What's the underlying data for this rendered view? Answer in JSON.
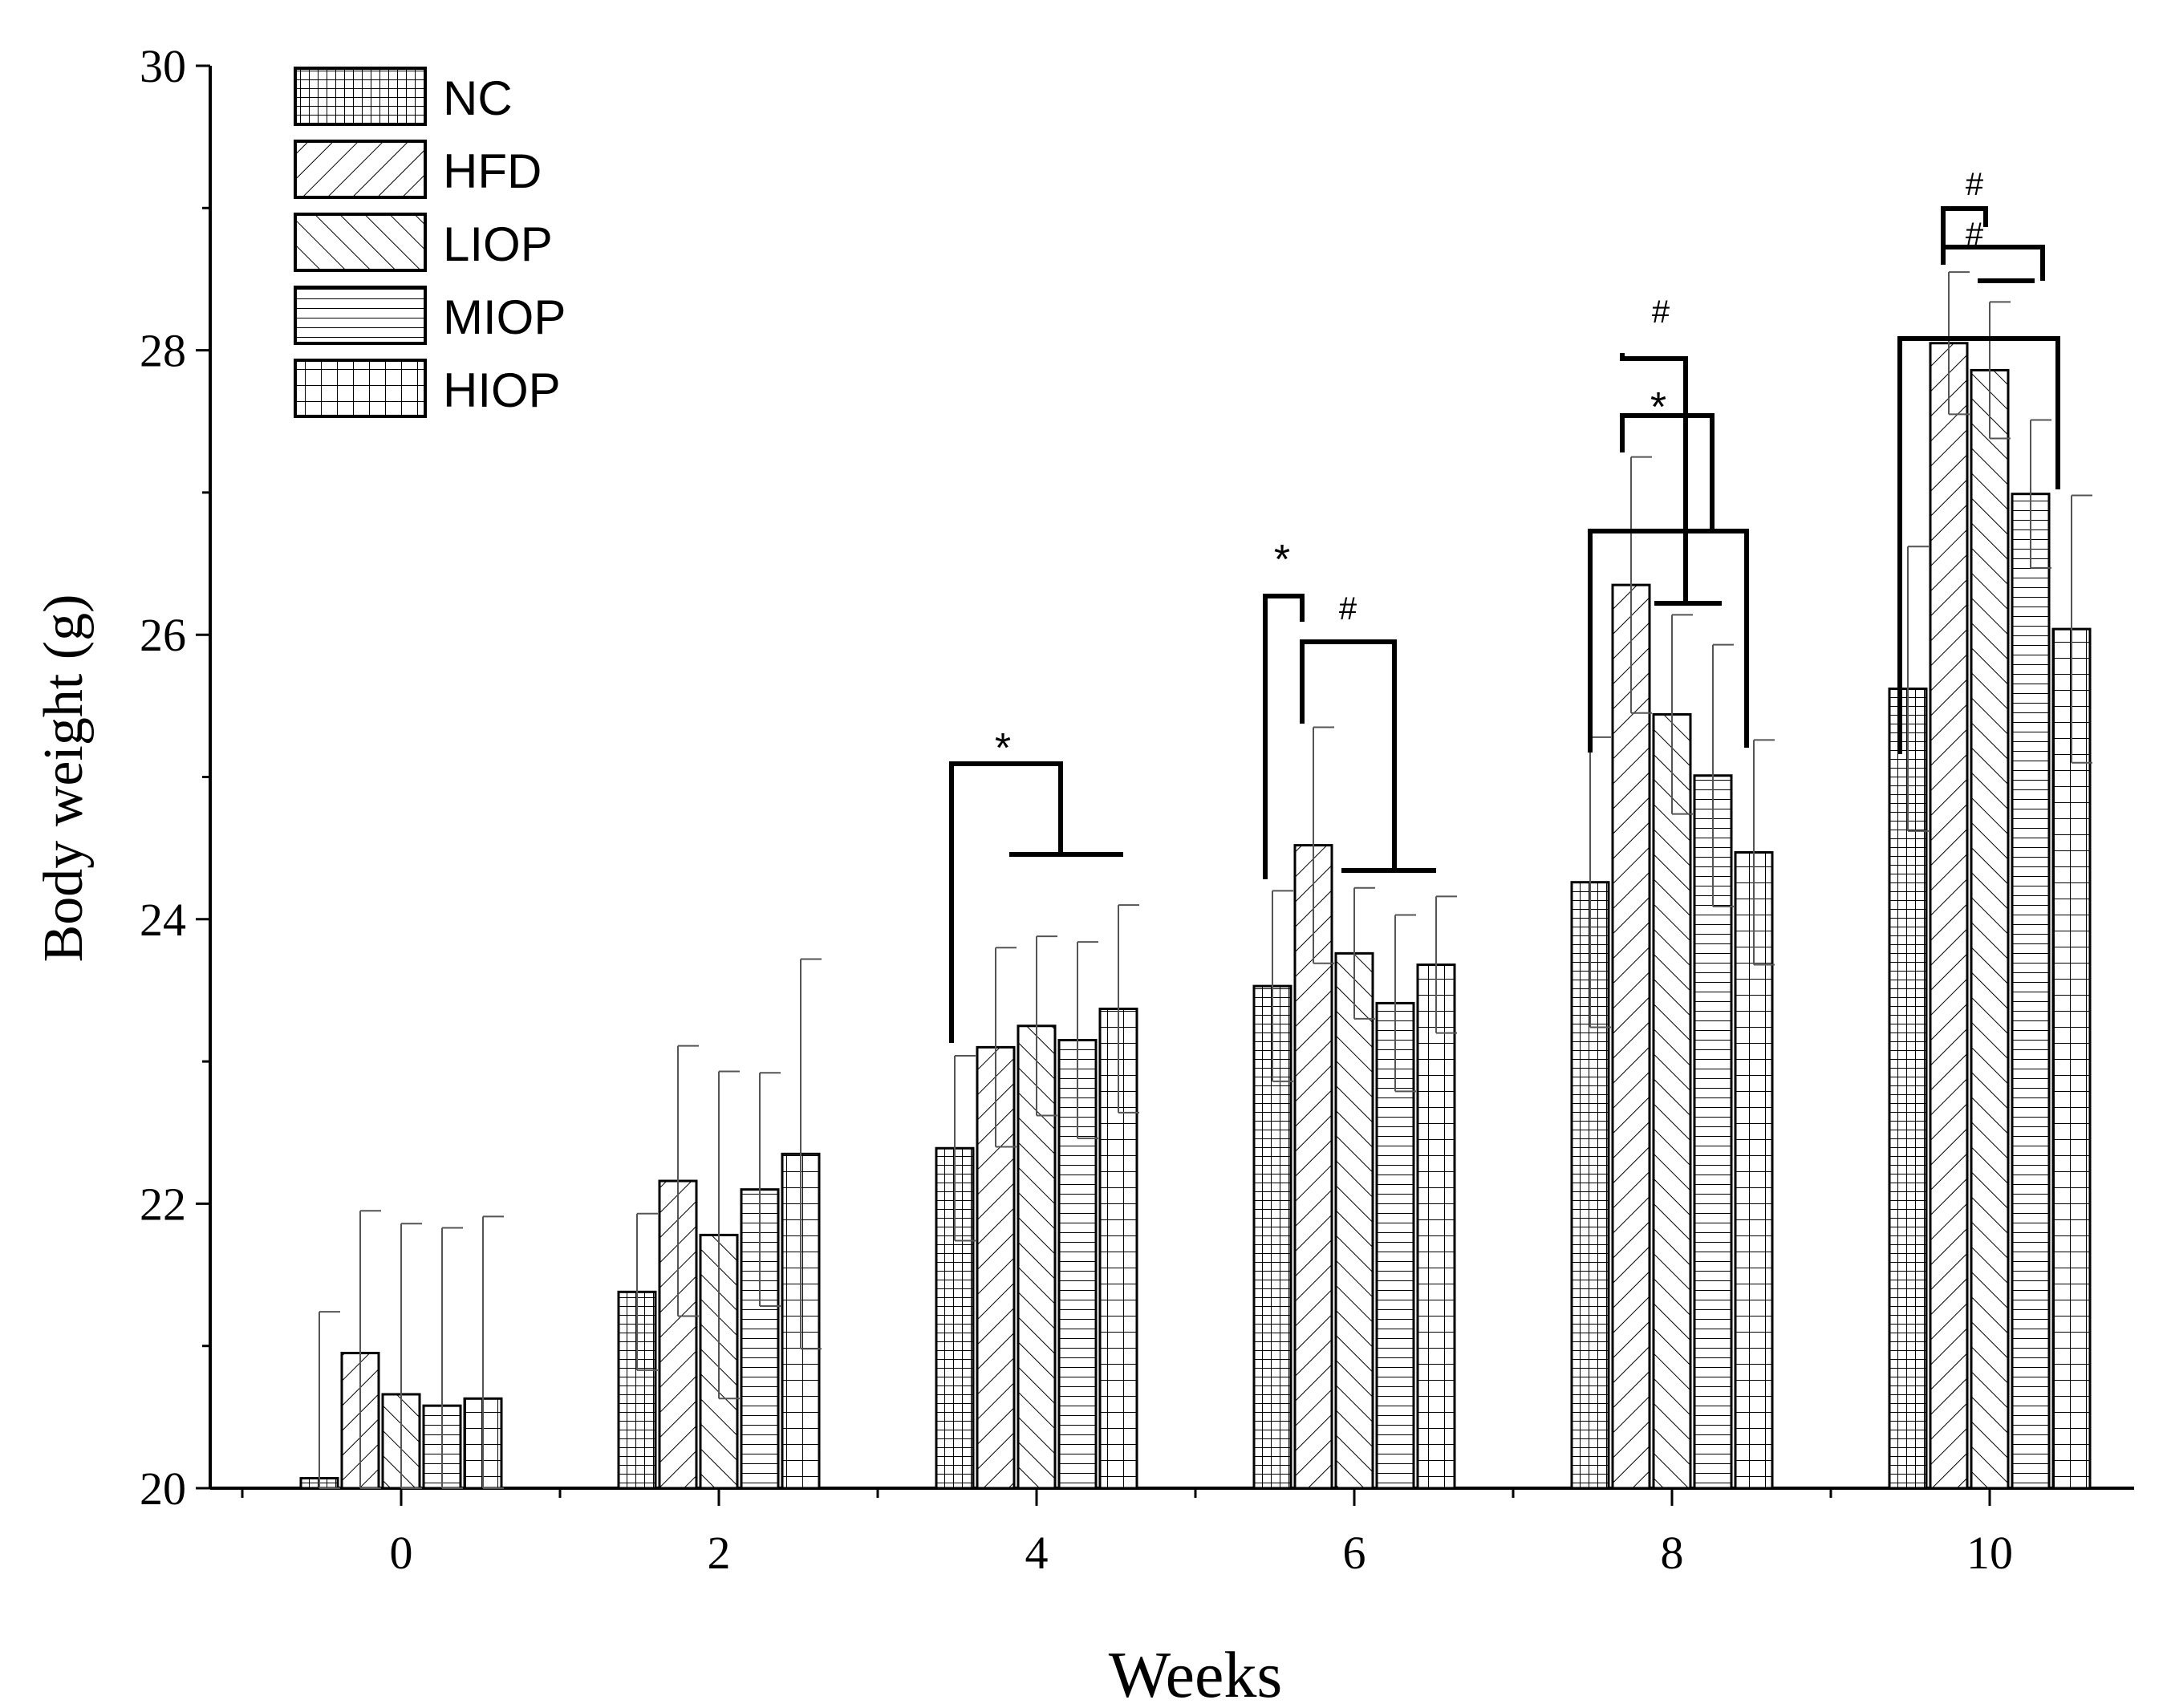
{
  "chart_data": {
    "type": "bar",
    "title": "",
    "xlabel": "Weeks",
    "ylabel": "Body weight (g)",
    "ylim": [
      20,
      30
    ],
    "yticks": [
      20,
      22,
      24,
      26,
      28,
      30
    ],
    "grid": false,
    "legend_position": "top-left",
    "categories": [
      "0",
      "2",
      "4",
      "6",
      "8",
      "10"
    ],
    "series": [
      {
        "name": "NC",
        "pattern": "grid-dense",
        "values": [
          20.07,
          21.38,
          22.39,
          23.53,
          24.26,
          25.62
        ],
        "errors": [
          1.17,
          0.55,
          0.65,
          0.67,
          1.02,
          1.0
        ]
      },
      {
        "name": "HFD",
        "pattern": "hatch-right",
        "values": [
          20.95,
          22.16,
          23.1,
          24.52,
          26.35,
          28.05
        ],
        "errors": [
          1.0,
          0.95,
          0.7,
          0.83,
          0.9,
          0.5
        ]
      },
      {
        "name": "LIOP",
        "pattern": "hatch-left",
        "values": [
          20.66,
          21.78,
          23.25,
          23.76,
          25.44,
          27.86
        ],
        "errors": [
          1.2,
          1.15,
          0.63,
          0.46,
          0.7,
          0.48
        ]
      },
      {
        "name": "MIOP",
        "pattern": "horizontal",
        "values": [
          20.58,
          22.1,
          23.15,
          23.41,
          25.01,
          26.99
        ],
        "errors": [
          1.25,
          0.82,
          0.69,
          0.62,
          0.92,
          0.52
        ]
      },
      {
        "name": "HIOP",
        "pattern": "grid-large",
        "values": [
          20.63,
          22.35,
          23.37,
          23.68,
          24.47,
          26.04
        ],
        "errors": [
          1.28,
          1.37,
          0.73,
          0.48,
          0.79,
          0.94
        ]
      }
    ],
    "annotations": [
      {
        "week": "4",
        "symbol": "*",
        "from": "NC",
        "to": "MIOP-HIOP"
      },
      {
        "week": "6",
        "symbol": "*",
        "from": "NC",
        "to": "HFD"
      },
      {
        "week": "6",
        "symbol": "#",
        "from": "HFD",
        "to": "MIOP-HIOP"
      },
      {
        "week": "8",
        "symbol": "#",
        "from": "HFD",
        "to": "LIOP"
      },
      {
        "week": "8",
        "symbol": "*",
        "from": "HFD",
        "to": "MIOP"
      },
      {
        "week": "10",
        "symbol": "#",
        "from": "HFD",
        "to": "LIOP"
      },
      {
        "week": "10",
        "symbol": "#",
        "from": "HFD",
        "to": "MIOP"
      }
    ]
  }
}
